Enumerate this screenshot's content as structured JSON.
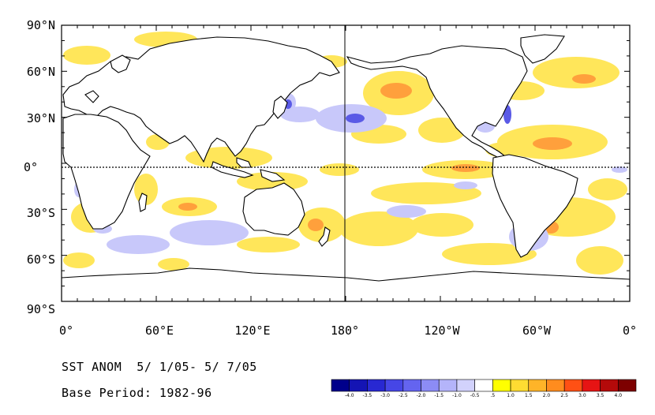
{
  "map": {
    "lat_labels": [
      "90°N",
      "60°N",
      "30°N",
      "0°",
      "30°S",
      "60°S",
      "90°S"
    ],
    "lon_labels": [
      "0°",
      "60°E",
      "120°E",
      "180°",
      "120°W",
      "60°W",
      "0°"
    ]
  },
  "caption": {
    "title": "SST ANOM  5/ 1/05- 5/ 7/05",
    "base_period": "Base Period: 1982-96"
  },
  "colorbar": {
    "labels": [
      "-4.0",
      "-3.5",
      "-3.0",
      "-2.5",
      "-2.0",
      "-1.5",
      "-1.0",
      "-0.5",
      ".5",
      "1.0",
      "1.5",
      "2.0",
      "2.5",
      "3.0",
      "3.5",
      "4.0"
    ],
    "colors": [
      "#00008b",
      "#1414b4",
      "#2828d2",
      "#4646e6",
      "#6464f0",
      "#8c8cf5",
      "#b4b4fa",
      "#d2d2fc",
      "#ffffff",
      "#ffff00",
      "#ffdc32",
      "#ffb428",
      "#ff8c1e",
      "#ff5014",
      "#e61414",
      "#b40a0a",
      "#7d0000"
    ]
  },
  "colors": {
    "land_outline": "#000000",
    "positive_anomaly": "#ffe65a",
    "strong_positive": "#ffa03c",
    "negative_anomaly": "#c8c8fa",
    "strong_negative": "#5a5ae6"
  }
}
